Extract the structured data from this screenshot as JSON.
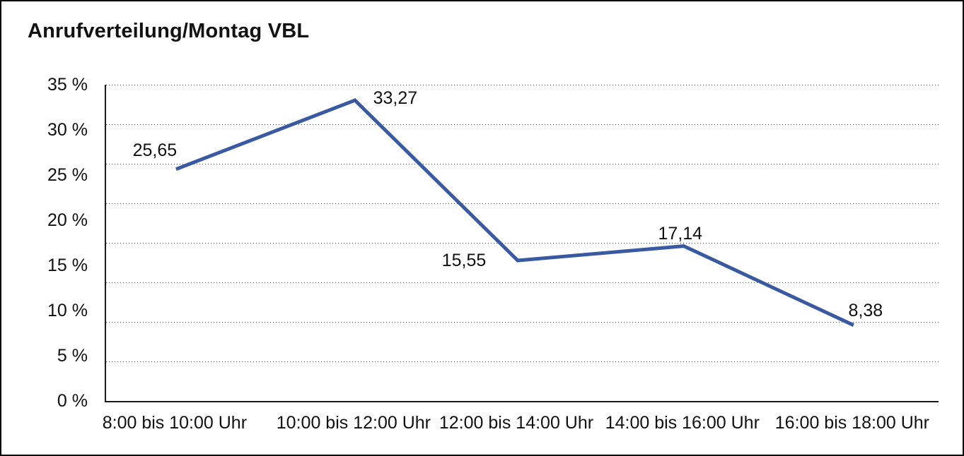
{
  "title": "Anrufverteilung/Montag VBL",
  "chart_data": {
    "type": "line",
    "title": "Anrufverteilung/Montag VBL",
    "categories": [
      "8:00 bis 10:00 Uhr",
      "10:00 bis 12:00 Uhr",
      "12:00 bis 14:00 Uhr",
      "14:00 bis 16:00 Uhr",
      "16:00 bis 18:00 Uhr"
    ],
    "values": [
      25.65,
      33.27,
      15.55,
      17.14,
      8.38
    ],
    "value_labels": [
      "25,65",
      "33,27",
      "15,55",
      "17,14",
      "8,38"
    ],
    "y_tick_labels": [
      "35 %",
      "30 %",
      "25 %",
      "20 %",
      "15 %",
      "10 %",
      "5 %",
      "0 %"
    ],
    "ylim": [
      0,
      35
    ],
    "xlabel": "",
    "ylabel": "",
    "grid": "horizontal-dotted",
    "grid_divisions": 8,
    "legend": "none",
    "line_color": "#3A59A3",
    "axis_color": "#1a1a1a",
    "text_color": "#111111"
  }
}
